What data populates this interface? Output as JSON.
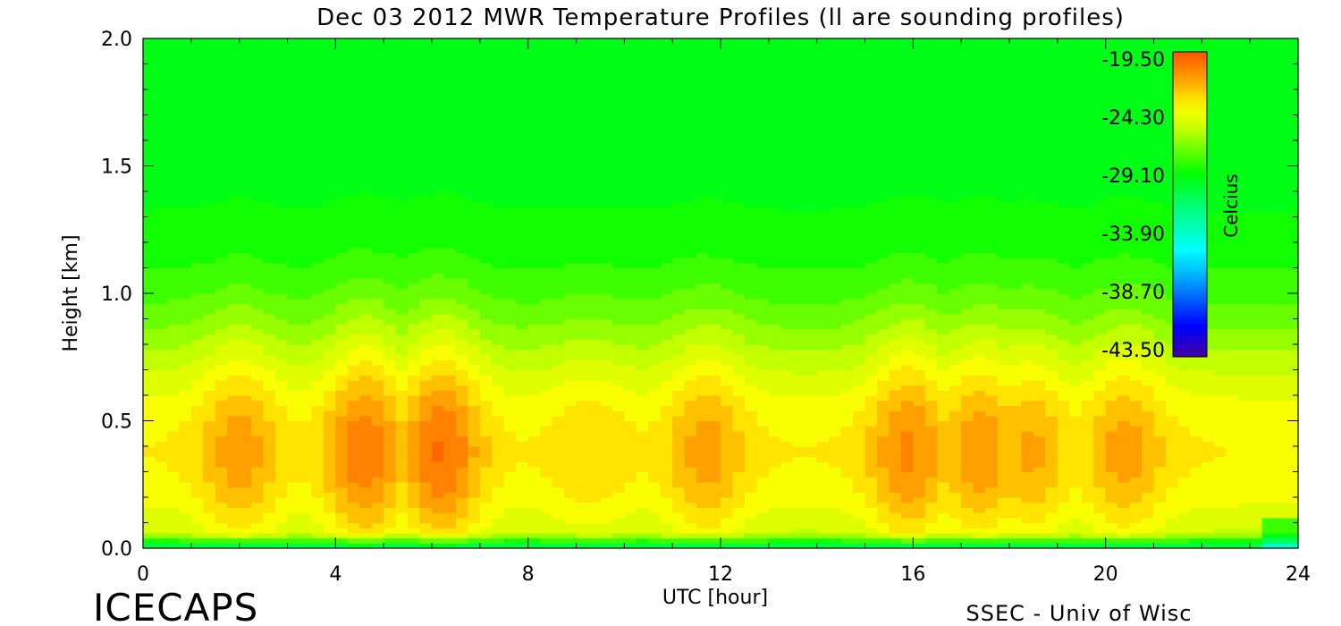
{
  "chart_data": {
    "type": "heatmap",
    "title": "Dec 03 2012 MWR Temperature Profiles (ll are sounding profiles)",
    "xlabel": "UTC [hour]",
    "ylabel": "Height [km]",
    "xlim": [
      0,
      24
    ],
    "ylim": [
      0,
      2
    ],
    "x_ticks": [
      "0",
      "4",
      "8",
      "12",
      "16",
      "20",
      "24"
    ],
    "y_ticks": [
      "0.0",
      "0.5",
      "1.0",
      "1.5",
      "2.0"
    ],
    "colorbar": {
      "label": "Celcius",
      "ticks": [
        "-19.50",
        "-24.30",
        "-29.10",
        "-33.90",
        "-38.70",
        "-43.50"
      ],
      "range": [
        -43.5,
        -19.5
      ],
      "placement": "top-right"
    },
    "footer_left": "ICECAPS",
    "footer_right": "SSEC - Univ of Wisc",
    "warm_layer_peaks": [
      {
        "hour": 2.0,
        "temp_c": -21.5
      },
      {
        "hour": 4.6,
        "temp_c": -20.6
      },
      {
        "hour": 6.2,
        "temp_c": -20.3
      },
      {
        "hour": 9.3,
        "temp_c": -22.8
      },
      {
        "hour": 11.7,
        "temp_c": -21.6
      },
      {
        "hour": 15.9,
        "temp_c": -21.0
      },
      {
        "hour": 17.4,
        "temp_c": -21.4
      },
      {
        "hour": 18.4,
        "temp_c": -21.8
      },
      {
        "hour": 20.4,
        "temp_c": -21.6
      }
    ],
    "upper_level_temp_c": -29.5,
    "surface_temp_c": -32.0
  }
}
